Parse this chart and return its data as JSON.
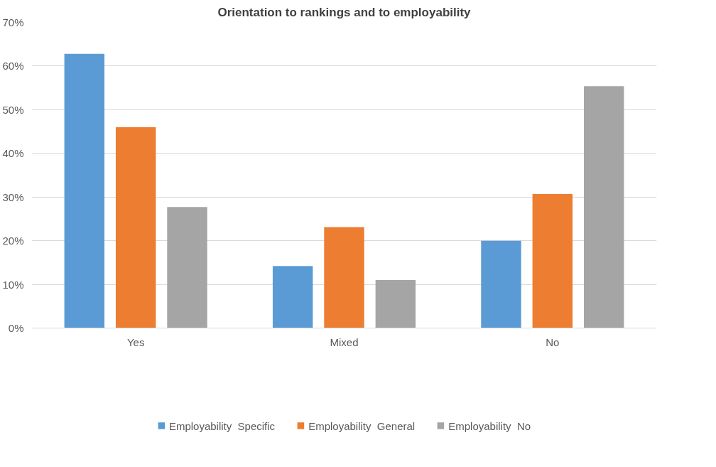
{
  "chart_data": {
    "type": "bar",
    "title": "Orientation to rankings and to employability",
    "categories": [
      "Yes",
      "Mixed",
      "No"
    ],
    "series": [
      {
        "name": "Employability  Specific",
        "color": "#5b9bd5",
        "values": [
          62.8,
          14.2,
          20
        ]
      },
      {
        "name": "Employability  General",
        "color": "#ed7d31",
        "values": [
          46,
          23.1,
          30.7
        ]
      },
      {
        "name": "Employability  No",
        "color": "#a5a5a5",
        "values": [
          27.7,
          11,
          55.4
        ]
      }
    ],
    "ylim": [
      0,
      70
    ],
    "yticks": [
      {
        "value": 0,
        "label": "0%"
      },
      {
        "value": 10,
        "label": "10%"
      },
      {
        "value": 20,
        "label": "20%"
      },
      {
        "value": 30,
        "label": "30%"
      },
      {
        "value": 40,
        "label": "40%"
      },
      {
        "value": 50,
        "label": "50%"
      },
      {
        "value": 60,
        "label": "60%"
      },
      {
        "value": 70,
        "label": "70%"
      }
    ],
    "grid": "y",
    "legend": "bottom"
  }
}
